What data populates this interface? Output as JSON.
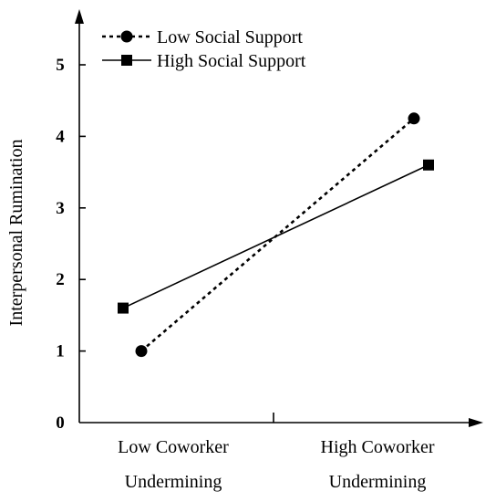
{
  "chart_data": {
    "type": "line",
    "title": "",
    "xlabel": "",
    "ylabel": "Interpersonal Rumination",
    "categories": [
      [
        "Low Coworker",
        "Undermining"
      ],
      [
        "High Coworker",
        "Undermining"
      ]
    ],
    "ylim": [
      0,
      5.6
    ],
    "yticks": [
      0,
      1,
      2,
      3,
      4,
      5
    ],
    "series": [
      {
        "name": "Low Social Support",
        "values": [
          1.0,
          4.25
        ],
        "line": "dotted",
        "marker": "circle"
      },
      {
        "name": "High Social Support",
        "values": [
          1.6,
          3.6
        ],
        "line": "solid",
        "marker": "square"
      }
    ],
    "legend_position": "top-left",
    "grid": false
  }
}
